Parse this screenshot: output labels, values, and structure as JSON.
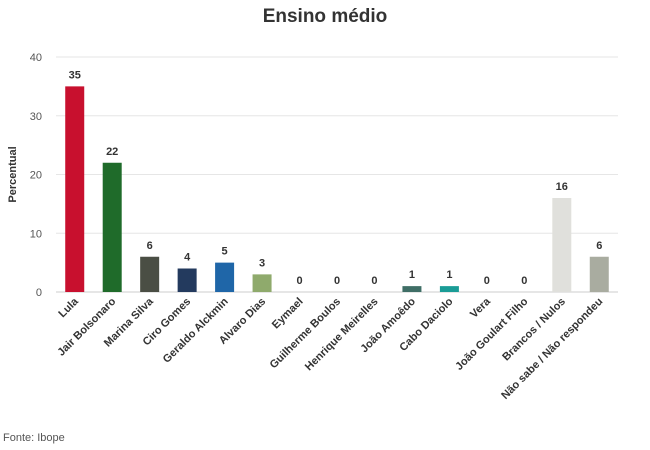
{
  "chart_data": {
    "type": "bar",
    "title": "Ensino médio",
    "ylabel": "Percentual",
    "xlabel": "",
    "ylim": [
      0,
      40
    ],
    "yticks": [
      0,
      10,
      20,
      30,
      40
    ],
    "grid": true,
    "categories": [
      "Lula",
      "Jair Bolsonaro",
      "Marina Silva",
      "Ciro Gomes",
      "Geraldo Alckmin",
      "Alvaro Dias",
      "Eymael",
      "Guilherme Boulos",
      "Henrique Meirelles",
      "João Amoêdo",
      "Cabo Daciolo",
      "Vera",
      "João Goulart Filho",
      "Brancos / Nulos",
      "Não sabe / Não respondeu"
    ],
    "values": [
      35,
      22,
      6,
      4,
      5,
      3,
      0,
      0,
      0,
      1,
      1,
      0,
      0,
      16,
      6
    ],
    "colors": [
      "#c8102e",
      "#1f6b2a",
      "#4a4e44",
      "#233a5e",
      "#1f66a8",
      "#8faa6c",
      "#888888",
      "#888888",
      "#888888",
      "#3f6e66",
      "#1a9c96",
      "#888888",
      "#888888",
      "#e0e0dc",
      "#a9aca0"
    ]
  },
  "source_text": "Fonte: Ibope"
}
